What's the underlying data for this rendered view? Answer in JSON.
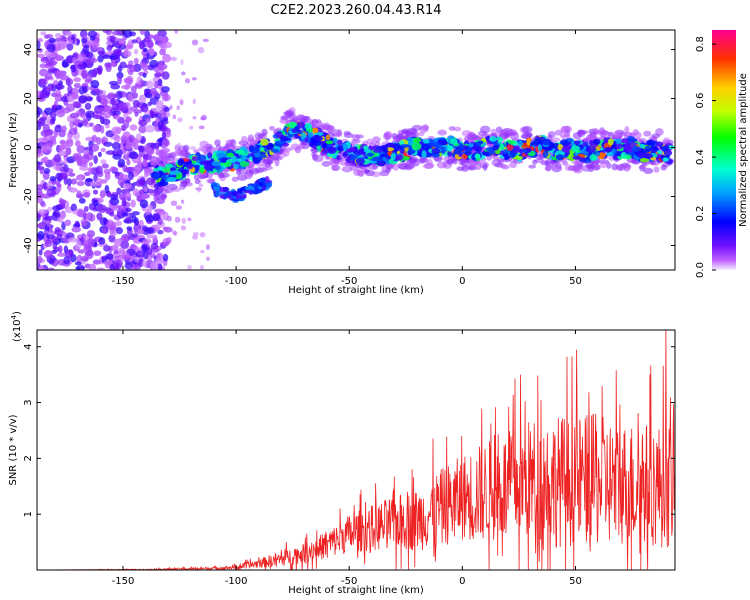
{
  "title": "C2E2.2023.260.04.43.R14",
  "chart_data": [
    {
      "type": "heatmap",
      "name": "spectrogram",
      "xlabel": "Height of straight line (km)",
      "ylabel": "Frequency (Hz)",
      "xlim": [
        -188,
        94
      ],
      "ylim": [
        -50,
        48
      ],
      "xticks": [
        -150,
        -100,
        -50,
        0,
        50
      ],
      "yticks": [
        -40,
        -20,
        0,
        20,
        40
      ],
      "ridge": {
        "x": [
          -136,
          -130,
          -125,
          -120,
          -110,
          -100,
          -95,
          -90,
          -85,
          -80,
          -75,
          -70,
          -65,
          -60,
          -55,
          -50,
          -45,
          -40,
          -35,
          -30,
          -25,
          -20,
          -15,
          -10,
          -5,
          0,
          5,
          10,
          15,
          20,
          25,
          30,
          35,
          40,
          45,
          50,
          55,
          60,
          65,
          70,
          75,
          80,
          85,
          92
        ],
        "y": [
          -12,
          -11,
          -9,
          -7,
          -6,
          -5,
          -4,
          -2,
          0,
          3,
          8,
          6,
          4,
          1,
          -1,
          -2,
          -3,
          -4,
          -3,
          -2,
          -1,
          1,
          0,
          0,
          1,
          -1,
          -1,
          0,
          1,
          -1,
          -1,
          0,
          1,
          -2,
          0,
          -1,
          -2,
          -1,
          0,
          -1,
          0,
          -2,
          -1,
          -3
        ]
      },
      "secondary_branch": {
        "x": [
          -110,
          -100,
          -95,
          -90,
          -85
        ],
        "y": [
          -17,
          -20,
          -18,
          -16,
          -14
        ]
      },
      "colorbar": {
        "label": "Normalized spectral amplitude",
        "ticks": [
          "0.0",
          "0.2",
          "0.4",
          "0.6",
          "0.8"
        ],
        "range": [
          0,
          0.85
        ]
      }
    },
    {
      "type": "line",
      "name": "snr",
      "xlabel": "Height of straight line (km)",
      "ylabel": "SNR (10 * v/v)",
      "scale_note": "(x10",
      "scale_exp": "4",
      "ylim": [
        0,
        4.3
      ],
      "yticks": [
        "1",
        "2",
        "3",
        "4"
      ],
      "xticks": [
        -150,
        -100,
        -50,
        0,
        50
      ],
      "color": "#ee2222",
      "envelope": {
        "x": [
          -188,
          -140,
          -110,
          -100,
          -90,
          -80,
          -70,
          -60,
          -50,
          -40,
          -30,
          -20,
          -10,
          0,
          10,
          20,
          30,
          40,
          50,
          60,
          70,
          80,
          90,
          94
        ],
        "base": [
          0.0,
          0.01,
          0.03,
          0.05,
          0.12,
          0.2,
          0.3,
          0.45,
          0.65,
          0.75,
          0.85,
          0.9,
          1.1,
          1.3,
          1.4,
          1.5,
          1.6,
          1.6,
          1.6,
          1.6,
          1.55,
          1.55,
          1.5,
          1.5
        ],
        "amp": [
          0.0,
          0.01,
          0.04,
          0.05,
          0.12,
          0.2,
          0.25,
          0.35,
          0.5,
          0.6,
          0.7,
          0.8,
          1.0,
          1.1,
          1.3,
          1.4,
          1.6,
          1.7,
          1.7,
          1.7,
          1.6,
          1.6,
          1.6,
          1.6
        ]
      },
      "peak": {
        "x": 90,
        "y": 4.3
      }
    }
  ]
}
